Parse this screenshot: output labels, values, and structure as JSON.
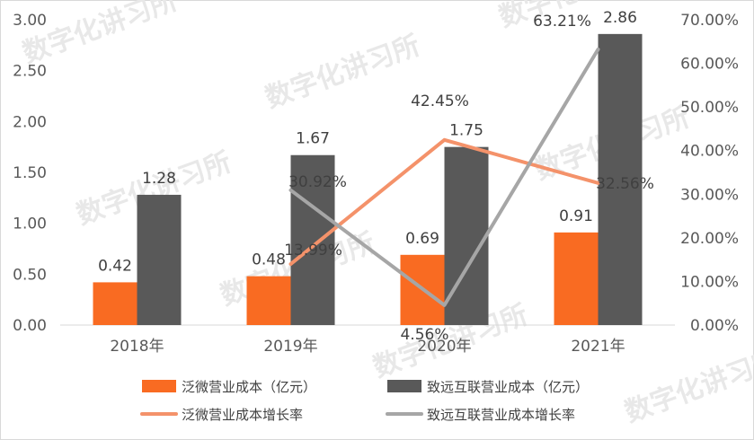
{
  "chart_data": {
    "type": "bar",
    "categories": [
      "2018年",
      "2019年",
      "2020年",
      "2021年"
    ],
    "series": [
      {
        "name": "泛微营业成本（亿元）",
        "kind": "bar",
        "axis": "left",
        "color": "#f96b22",
        "values": [
          0.42,
          0.48,
          0.69,
          0.91
        ],
        "labels": [
          "0.42",
          "0.48",
          "0.69",
          "0.91"
        ]
      },
      {
        "name": "致远互联营业成本（亿元）",
        "kind": "bar",
        "axis": "left",
        "color": "#595959",
        "values": [
          1.28,
          1.67,
          1.75,
          2.86
        ],
        "labels": [
          "1.28",
          "1.67",
          "1.75",
          "2.86"
        ]
      },
      {
        "name": "泛微营业成本增长率",
        "kind": "line",
        "axis": "right",
        "color": "#f4926a",
        "values": [
          null,
          13.99,
          42.45,
          32.56
        ],
        "labels": [
          "",
          "13.99%",
          "42.45%",
          "32.56%"
        ]
      },
      {
        "name": "致远互联营业成本增长率",
        "kind": "line",
        "axis": "right",
        "color": "#a6a6a6",
        "values": [
          null,
          30.92,
          4.56,
          63.21
        ],
        "labels": [
          "",
          "30.92%",
          "4.56%",
          "63.21%"
        ]
      }
    ],
    "y_left": {
      "min": 0,
      "max": 3.0,
      "ticks": [
        "0.00",
        "0.50",
        "1.00",
        "1.50",
        "2.00",
        "2.50",
        "3.00"
      ]
    },
    "y_right": {
      "min": 0,
      "max": 70,
      "ticks": [
        "0.00%",
        "10.00%",
        "20.00%",
        "30.00%",
        "40.00%",
        "50.00%",
        "60.00%",
        "70.00%"
      ]
    },
    "grid": false,
    "legend": "bottom"
  },
  "watermark": "数字化讲习所"
}
